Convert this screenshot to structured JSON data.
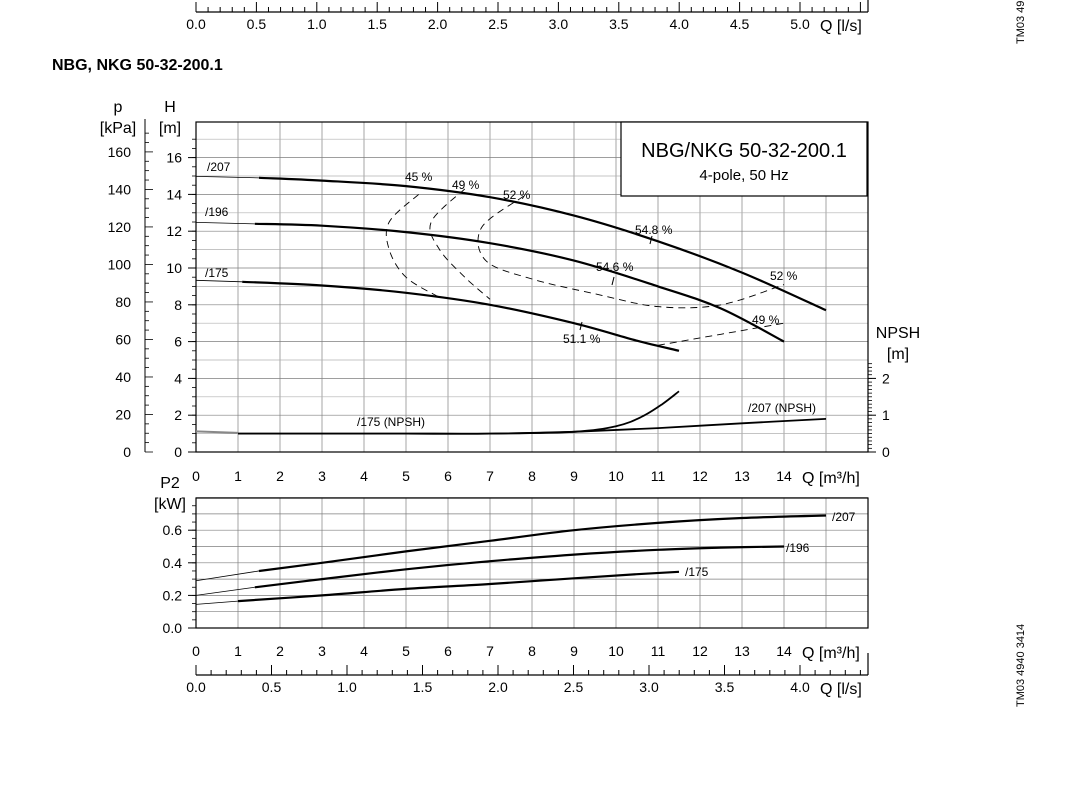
{
  "page": {
    "title": "NBG, NKG 50-32-200.1",
    "image_codes": [
      "TM03 4940 3414",
      "TM03 49"
    ]
  },
  "chart_data": [
    {
      "id": "top_q_ls_axis_partial",
      "type": "line",
      "xlabel": "Q [l/s]",
      "xlim": [
        0,
        5.5
      ],
      "x_ticks": [
        "0.0",
        "0.5",
        "1.0",
        "1.5",
        "2.0",
        "2.5",
        "3.0",
        "3.5",
        "4.0",
        "4.5",
        "5.0"
      ]
    },
    {
      "id": "head_npsh",
      "type": "line",
      "legend_box": {
        "title": "NBG/NKG 50-32-200.1",
        "subtitle": "4-pole, 50 Hz",
        "placement": "top-right"
      },
      "xlabel": "Q [m³/h]",
      "xlim": [
        0,
        16
      ],
      "x_ticks": [
        "0",
        "1",
        "2",
        "3",
        "4",
        "5",
        "6",
        "7",
        "8",
        "9",
        "10",
        "11",
        "12",
        "13",
        "14",
        "Q [m³/h]"
      ],
      "ylabel_head": "H\n[m]",
      "ylabel_pressure": "p\n[kPa]",
      "ylabel_npsh": "NPSH\n[m]",
      "ylim_head": [
        0,
        17.5
      ],
      "head_ticks": [
        "0",
        "2",
        "4",
        "6",
        "8",
        "10",
        "12",
        "14",
        "16"
      ],
      "pressure_ticks": [
        "0",
        "20",
        "40",
        "60",
        "80",
        "100",
        "120",
        "140",
        "160"
      ],
      "npsh_ticks": [
        "0",
        "1",
        "2"
      ],
      "grid": true,
      "series": [
        {
          "name": "/207",
          "x": [
            1.5,
            3,
            5,
            7,
            9,
            11,
            13,
            15
          ],
          "y": [
            14.9,
            14.75,
            14.45,
            13.85,
            12.85,
            11.45,
            9.75,
            7.7
          ]
        },
        {
          "name": "/196",
          "x": [
            1.4,
            3,
            5,
            7,
            9,
            11,
            12.5,
            14
          ],
          "y": [
            12.4,
            12.3,
            11.95,
            11.35,
            10.4,
            9.0,
            7.8,
            6.0
          ]
        },
        {
          "name": "/175",
          "x": [
            1.1,
            3,
            5,
            7,
            9,
            10.5,
            11.5
          ],
          "y": [
            9.25,
            9.05,
            8.65,
            8.0,
            7.0,
            6.05,
            5.5
          ]
        },
        {
          "name": "/175 (NPSH)",
          "x": [
            1,
            3,
            5,
            7,
            9,
            10,
            10.6,
            11.1,
            11.5
          ],
          "y": [
            0.5,
            0.5,
            0.5,
            0.5,
            0.55,
            0.7,
            0.95,
            1.3,
            1.65
          ]
        },
        {
          "name": "/207 (NPSH)",
          "x": [
            1,
            3,
            5,
            7,
            9,
            11,
            13,
            15
          ],
          "y": [
            0.5,
            0.5,
            0.5,
            0.5,
            0.55,
            0.65,
            0.78,
            0.9
          ]
        }
      ],
      "efficiency_lines": [
        {
          "label": "45 %",
          "x": [
            5.3,
            4.6,
            4.6,
            5.0,
            5.8
          ],
          "y": [
            14.0,
            12.5,
            11.0,
            9.5,
            8.4
          ]
        },
        {
          "label": "49 %",
          "x": [
            6.4,
            5.6,
            5.8,
            6.4,
            7.0
          ],
          "y": [
            14.3,
            12.5,
            11.0,
            9.5,
            8.3
          ]
        },
        {
          "label": "52 %",
          "x": [
            7.8,
            6.8,
            6.9,
            8.0,
            9.5,
            11.0,
            12.5,
            14.0
          ],
          "y": [
            13.9,
            12.2,
            10.4,
            9.4,
            8.6,
            7.9,
            8.0,
            9.1
          ]
        },
        {
          "label": "49 %",
          "x": [
            11.0,
            12.0,
            13.0,
            14.0
          ],
          "y": [
            5.8,
            6.2,
            6.6,
            7.0
          ]
        }
      ],
      "efficiency_labels": [
        "45 %",
        "49 %",
        "52 %",
        "54.8 %",
        "54.6 %",
        "51.1 %",
        "52 %",
        "49 %"
      ],
      "curve_labels": [
        "/207",
        "/196",
        "/175",
        "/175 (NPSH)",
        "/207 (NPSH)"
      ]
    },
    {
      "id": "power",
      "type": "line",
      "xlabel": "Q [m³/h]",
      "xlim": [
        0,
        16
      ],
      "x_ticks": [
        "0",
        "1",
        "2",
        "3",
        "4",
        "5",
        "6",
        "7",
        "8",
        "9",
        "10",
        "11",
        "12",
        "13",
        "14",
        "Q [m³/h]"
      ],
      "ylabel": "P2\n[kW]",
      "ylim": [
        0,
        0.8
      ],
      "y_ticks": [
        "0.0",
        "0.2",
        "0.4",
        "0.6"
      ],
      "grid": true,
      "series": [
        {
          "name": "/207",
          "x": [
            1.5,
            3,
            5,
            7,
            9,
            11,
            13,
            15
          ],
          "y": [
            0.35,
            0.4,
            0.47,
            0.535,
            0.6,
            0.645,
            0.675,
            0.69
          ]
        },
        {
          "name": "/196",
          "x": [
            1.4,
            3,
            5,
            7,
            9,
            11,
            12.5,
            14
          ],
          "y": [
            0.25,
            0.3,
            0.36,
            0.41,
            0.45,
            0.48,
            0.493,
            0.5
          ]
        },
        {
          "name": "/175",
          "x": [
            1.0,
            3,
            5,
            7,
            9,
            10.5,
            11.5
          ],
          "y": [
            0.165,
            0.2,
            0.24,
            0.27,
            0.305,
            0.33,
            0.345
          ]
        }
      ]
    },
    {
      "id": "bottom_q_ls_axis",
      "type": "line",
      "xlabel": "Q [l/s]",
      "xlim": [
        0,
        4.4
      ],
      "x_ticks": [
        "0.0",
        "0.5",
        "1.0",
        "1.5",
        "2.0",
        "2.5",
        "3.0",
        "3.5",
        "4.0"
      ]
    }
  ]
}
